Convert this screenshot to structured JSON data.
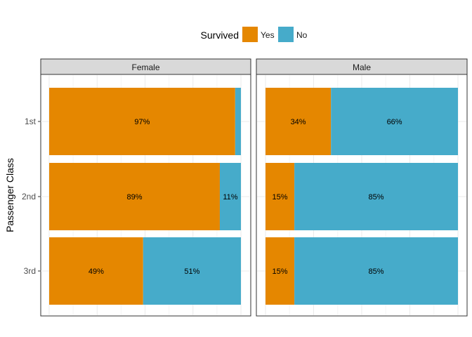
{
  "chart_data": {
    "type": "bar",
    "orientation": "horizontal",
    "stacked": true,
    "percent": true,
    "xlabel": "",
    "ylabel": "Passenger Class",
    "xlim": [
      0,
      100
    ],
    "legend": {
      "title": "Survived",
      "position": "top",
      "entries": [
        {
          "name": "Yes",
          "color": "#E58700"
        },
        {
          "name": "No",
          "color": "#46ABCA"
        }
      ]
    },
    "categories": [
      "1st",
      "2nd",
      "3rd"
    ],
    "facets": [
      {
        "label": "Female",
        "series": [
          {
            "name": "Yes",
            "values": [
              97,
              89,
              49
            ],
            "labels": [
              "97%",
              "89%",
              "49%"
            ]
          },
          {
            "name": "No",
            "values": [
              3,
              11,
              51
            ],
            "labels": [
              "",
              "11%",
              "51%"
            ]
          }
        ]
      },
      {
        "label": "Male",
        "series": [
          {
            "name": "Yes",
            "values": [
              34,
              15,
              15
            ],
            "labels": [
              "34%",
              "15%",
              "15%"
            ]
          },
          {
            "name": "No",
            "values": [
              66,
              85,
              85
            ],
            "labels": [
              "66%",
              "85%",
              "85%"
            ]
          }
        ]
      }
    ]
  }
}
